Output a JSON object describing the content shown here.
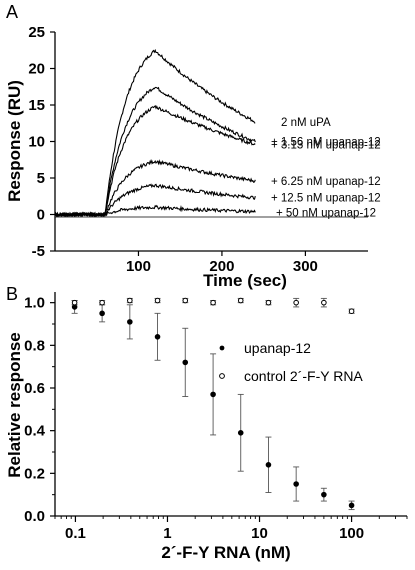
{
  "chart_data": [
    {
      "panel": "A",
      "type": "line",
      "xlabel": "Time (sec)",
      "ylabel": "Response (RU)",
      "xlim": [
        0,
        375
      ],
      "ylim": [
        -5,
        25
      ],
      "xticks": [
        "100",
        "200",
        "300"
      ],
      "xtick_values": [
        100,
        200,
        300
      ],
      "yticks": [
        "-5",
        "0",
        "5",
        "10",
        "15",
        "20",
        "25"
      ],
      "ytick_values": [
        -5,
        0,
        5,
        10,
        15,
        20,
        25
      ],
      "injection_start": 60,
      "injection_end": 120,
      "trace_end": 240,
      "color": "#000000",
      "series": [
        {
          "name": "2 nM uPA",
          "label": "2 nM uPA",
          "peak": 22.5,
          "end": 12.7
        },
        {
          "name": "+ 1.56 nM upanap-12",
          "label": "+ 1.56 nM upanap-12",
          "peak": 17.5,
          "end": 10.0
        },
        {
          "name": "+ 3.13 nM upanap-12",
          "label": "+ 3.13 nM upanap-12",
          "peak": 14.8,
          "end": 9.6
        },
        {
          "name": "+ 6.25 nM upanap-12",
          "label": "+ 6.25 nM upanap-12",
          "peak": 7.3,
          "end": 4.6
        },
        {
          "name": "+ 12.5 nM upanap-12",
          "label": "+ 12.5 nM upanap-12",
          "peak": 4.0,
          "end": 2.3
        },
        {
          "name": "+ 50 nM upanap-12",
          "label": "+ 50 nM upanap-12",
          "peak": 1.0,
          "end": 0.4
        }
      ]
    },
    {
      "panel": "B",
      "type": "scatter",
      "xlabel": "2´-F-Y RNA (nM)",
      "ylabel": "Relative response",
      "xscale": "log",
      "xlim": [
        0.06,
        400
      ],
      "ylim": [
        0,
        1.05
      ],
      "xticks": [
        "0.1",
        "1",
        "10",
        "100"
      ],
      "xtick_values": [
        0.1,
        1,
        10,
        100
      ],
      "yticks": [
        "0.0",
        "0.2",
        "0.4",
        "0.6",
        "0.8",
        "1.0"
      ],
      "ytick_values": [
        0,
        0.2,
        0.4,
        0.6,
        0.8,
        1.0
      ],
      "legend_position": "right",
      "series": [
        {
          "name": "upanap-12",
          "marker": "filled-circle",
          "x": [
            0.098,
            0.195,
            0.39,
            0.78,
            1.56,
            3.13,
            6.25,
            12.5,
            25,
            50,
            100
          ],
          "y": [
            0.98,
            0.95,
            0.91,
            0.84,
            0.72,
            0.57,
            0.39,
            0.24,
            0.15,
            0.1,
            0.05
          ],
          "err": [
            0.03,
            0.04,
            0.08,
            0.11,
            0.16,
            0.19,
            0.18,
            0.13,
            0.08,
            0.03,
            0.02
          ]
        },
        {
          "name": "control 2´-F-Y RNA",
          "marker": "open-circle",
          "x": [
            0.098,
            0.195,
            0.39,
            0.78,
            1.56,
            3.13,
            6.25,
            12.5,
            25,
            50,
            100
          ],
          "y": [
            1.0,
            1.0,
            1.01,
            1.01,
            1.01,
            1.0,
            1.01,
            1.0,
            1.0,
            1.0,
            0.96
          ],
          "err": [
            0.01,
            0.01,
            0.01,
            0.01,
            0.01,
            0.01,
            0.01,
            0.01,
            0.02,
            0.02,
            0.01
          ]
        }
      ]
    }
  ]
}
